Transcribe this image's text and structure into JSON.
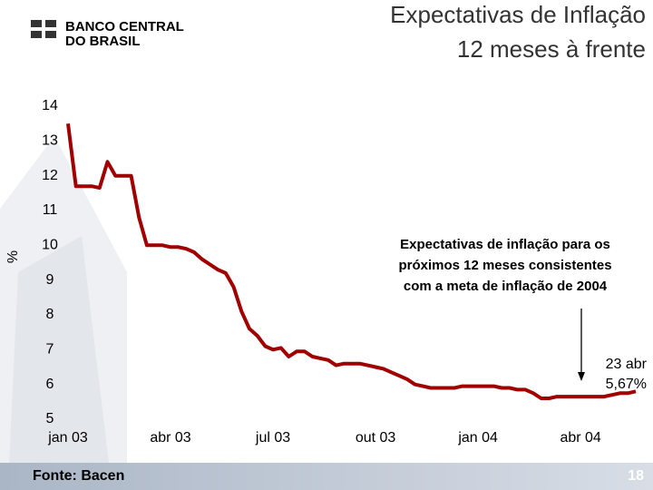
{
  "logo": [
    "BANCO CENTRAL",
    "DO BRASIL"
  ],
  "source": "Fonte: Bacen",
  "page_number": "18",
  "chart_data": {
    "type": "line",
    "title": "Expectativas de Inflação",
    "subtitle": "12 meses à frente",
    "y_label": "%",
    "color": "#a00000",
    "categories": [
      "jan 03",
      null,
      null,
      null,
      null,
      null,
      null,
      null,
      null,
      null,
      null,
      null,
      null,
      "abr 03",
      null,
      null,
      null,
      null,
      null,
      null,
      null,
      null,
      null,
      null,
      null,
      null,
      "jul 03",
      null,
      null,
      null,
      null,
      null,
      null,
      null,
      null,
      null,
      null,
      null,
      null,
      "out 03",
      null,
      null,
      null,
      null,
      null,
      null,
      null,
      null,
      null,
      null,
      null,
      null,
      "jan 04",
      null,
      null,
      null,
      null,
      null,
      null,
      null,
      null,
      null,
      null,
      null,
      null,
      "abr 04",
      null,
      null,
      null,
      null,
      null,
      null,
      null
    ],
    "values": [
      13.5,
      11.7,
      11.7,
      11.7,
      11.65,
      12.4,
      12.0,
      12.0,
      12.0,
      10.8,
      10.0,
      10.0,
      10.0,
      9.95,
      9.95,
      9.9,
      9.8,
      9.6,
      9.45,
      9.3,
      9.2,
      8.8,
      8.1,
      7.6,
      7.4,
      7.1,
      7.0,
      7.05,
      6.8,
      6.95,
      6.95,
      6.8,
      6.75,
      6.7,
      6.55,
      6.6,
      6.6,
      6.6,
      6.55,
      6.5,
      6.45,
      6.35,
      6.25,
      6.15,
      6.0,
      5.95,
      5.9,
      5.9,
      5.9,
      5.9,
      5.95,
      5.95,
      5.95,
      5.95,
      5.95,
      5.9,
      5.9,
      5.85,
      5.85,
      5.75,
      5.6,
      5.6,
      5.65,
      5.65,
      5.65,
      5.65,
      5.65,
      5.65,
      5.65,
      5.7,
      5.75,
      5.75,
      5.8
    ],
    "ylim": [
      5,
      14
    ],
    "yticks": [
      5,
      6,
      7,
      8,
      9,
      10,
      11,
      12,
      13,
      14
    ],
    "annotation": [
      "Expectativas de inflação para os",
      "próximos 12 meses consistentes",
      "com a meta de inflação de 2004"
    ],
    "callout": [
      "23 abr",
      "5,67%"
    ]
  }
}
